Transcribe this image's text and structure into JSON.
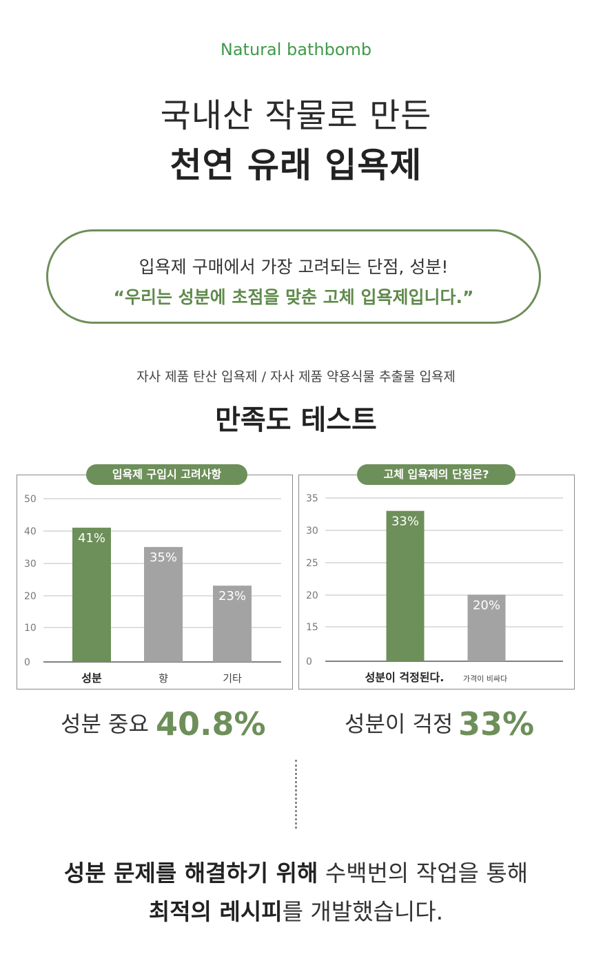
{
  "header": {
    "brand": "Natural bathbomb",
    "headline_line1": "국내산 작물로 만든",
    "headline_line2": "천연 유래 입욕제"
  },
  "pill_box": {
    "line1": "입욕제 구매에서 가장 고려되는 단점, 성분!",
    "line2": "“우리는 성분에 초점을 맞춘 고체 입욕제입니다.”"
  },
  "test": {
    "subtitle": "자사 제품 탄산 입욕제 / 자사 제품 약용식물 추출물 입욕제",
    "title": "만족도 테스트"
  },
  "colors": {
    "accent": "#6d8f59",
    "bar_gray": "#a3a3a3",
    "brand_green": "#3f9a4a"
  },
  "chart_data": [
    {
      "type": "bar",
      "title": "입욕제 구입시 고려사항",
      "categories": [
        "성분",
        "향",
        "기타"
      ],
      "values": [
        41,
        35,
        23
      ],
      "value_labels": [
        "41%",
        "35%",
        "23%"
      ],
      "yticks": [
        "50",
        "40",
        "30",
        "20",
        "10",
        "0"
      ],
      "ytick_values": [
        50,
        40,
        30,
        20,
        10,
        0
      ],
      "ylim": [
        0,
        50
      ],
      "highlight_index": 0,
      "grid": true
    },
    {
      "type": "bar",
      "title": "고체 입욕제의 단점은?",
      "categories": [
        "성분이 걱정된다.",
        "가격이 비싸다"
      ],
      "values": [
        33,
        20
      ],
      "value_labels": [
        "33%",
        "20%"
      ],
      "yticks": [
        "35",
        "30",
        "25",
        "20",
        "15",
        "0"
      ],
      "ytick_values": [
        35,
        30,
        25,
        20,
        15,
        0
      ],
      "ylim": [
        0,
        35
      ],
      "highlight_index": 0,
      "grid": true
    }
  ],
  "stats": {
    "left_label": "성분 중요",
    "left_value": "40.8%",
    "right_label": "성분이 걱정",
    "right_value": "33%"
  },
  "footer": {
    "line1_bold": "성분 문제를 해결하기 위해",
    "line1_rest": " 수백번의 작업을 통해",
    "line2_bold": "최적의 레시피",
    "line2_rest": "를 개발했습니다."
  }
}
